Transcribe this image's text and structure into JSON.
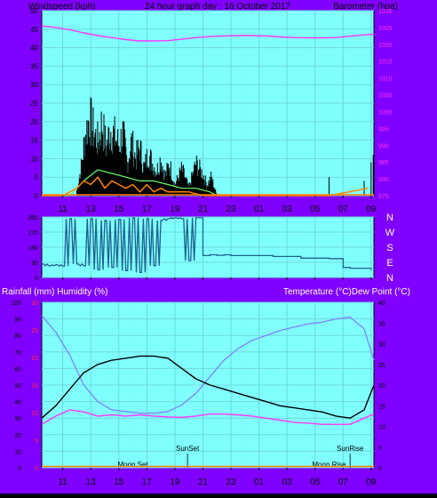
{
  "colors": {
    "page_bg": "#8000ff",
    "plot_bg": "#80ffff",
    "grid": "#6fd8d8",
    "wind_gust": "#000000",
    "wind_avg": "#66ff66",
    "wind_speed": "#ff8000",
    "barometer": "#ff33ff",
    "direction": "#1f5f8f",
    "temperature": "#000000",
    "humidity": "#8080ff",
    "dew_point": "#ff33ff",
    "rainfall": "#ff0000",
    "rain_axis": "#ff3333"
  },
  "header": {
    "left_label": "Windspeed (kph)",
    "center_label": "24 hour graph day : 16 October 2017",
    "right_label": "Barometer (hpa)"
  },
  "mid_header": {
    "left_label": "Rainfall (mm)  Humidity (%)",
    "right_label": "Temperature (°C)Dew Point (°C)"
  },
  "direction_labels": [
    "N",
    "W",
    "S",
    "E",
    "N"
  ],
  "time_ticks": [
    "11",
    "13",
    "15",
    "17",
    "19",
    "21",
    "23",
    "01",
    "03",
    "05",
    "07",
    "09"
  ],
  "chart_data": [
    {
      "type": "line",
      "name": "wind-and-barometer",
      "yaxis_left": {
        "label": "Windspeed (kph)",
        "ticks": [
          0,
          5,
          10,
          15,
          20,
          25,
          30,
          35,
          40,
          45,
          50
        ],
        "ylim": [
          0,
          50
        ]
      },
      "yaxis_right": {
        "label": "Barometer (hpa)",
        "ticks": [
          975,
          980,
          985,
          990,
          995,
          1000,
          1005,
          1010,
          1015,
          1020,
          1025,
          1030
        ],
        "ylim": [
          975,
          1030
        ]
      },
      "x_ticks": [
        "11",
        "13",
        "15",
        "17",
        "19",
        "21",
        "23",
        "01",
        "03",
        "05",
        "07",
        "09"
      ],
      "grid": true,
      "series": [
        {
          "axis": "right",
          "x": [
            9.5,
            10.5,
            11.5,
            12.5,
            13.5,
            14.5,
            15.5,
            16.5,
            17.5,
            18.5,
            19.5,
            20.5,
            21.5,
            22.5,
            23.5,
            24.5,
            25.5,
            26.5,
            27.5,
            28.5,
            29.5,
            30.5,
            31.5,
            32.5,
            33.2
          ],
          "values": [
            1025.5,
            1025,
            1024.3,
            1023.4,
            1022.6,
            1022,
            1021.4,
            1021,
            1021,
            1021.1,
            1021.5,
            1022,
            1022.3,
            1022.5,
            1022.6,
            1022.6,
            1022.5,
            1022.2,
            1022,
            1021.9,
            1021.9,
            1022,
            1022.4,
            1022.8,
            1023
          ]
        },
        {
          "axis": "left",
          "x": [
            9.5,
            10.5,
            11.5,
            12.0,
            12.3,
            12.6,
            12.9,
            13.2,
            13.5,
            13.8,
            14.1,
            14.4,
            14.7,
            15.0,
            15.3,
            15.6,
            15.9,
            16.2,
            16.5,
            16.8,
            17.1,
            17.4,
            17.7,
            18.0,
            18.3,
            18.6,
            19.0,
            19.5,
            20.0,
            20.5,
            21.0,
            21.3,
            21.6,
            22.0,
            30.0,
            32.5,
            33.0,
            33.2
          ],
          "values": [
            0,
            0,
            0,
            2,
            10,
            22,
            29,
            24,
            20,
            27,
            18,
            25,
            22,
            19,
            23,
            12,
            20,
            14,
            18,
            10,
            16,
            12,
            9,
            14,
            7,
            12,
            4,
            10,
            3,
            12,
            8,
            4,
            7,
            0,
            5,
            4,
            9,
            11
          ]
        },
        {
          "axis": "left",
          "x": [
            9.5,
            11.5,
            12.5,
            13.5,
            14.5,
            15.5,
            16.5,
            17.5,
            18.5,
            19.5,
            20.5,
            21.5,
            22.0
          ],
          "values": [
            0,
            0,
            4,
            7,
            6,
            5,
            4,
            4,
            3,
            2,
            2,
            1,
            0
          ]
        },
        {
          "axis": "left",
          "x": [
            9.5,
            11.0,
            12.0,
            12.5,
            13.0,
            13.5,
            14.0,
            14.5,
            15.0,
            15.5,
            16.0,
            16.5,
            17.0,
            17.5,
            18.0,
            18.5,
            19.0,
            20.0,
            21.0,
            30.0,
            32.8
          ],
          "values": [
            0,
            0,
            2,
            4,
            3,
            5,
            2,
            4,
            3,
            2,
            3,
            1,
            3,
            1,
            2,
            1,
            1,
            1,
            0,
            0,
            2
          ]
        }
      ]
    },
    {
      "type": "line",
      "name": "wind-direction",
      "yaxis_left": {
        "ticks": [
          0,
          90,
          180,
          270,
          360
        ],
        "ylim": [
          0,
          360
        ]
      },
      "grid": true,
      "series": [
        {
          "x": [
            9.5,
            10.0,
            10.5,
            11.0,
            11.5,
            12.0,
            12.5,
            13.0,
            13.5,
            14.0,
            14.5,
            15.0,
            15.5,
            16.0,
            16.5,
            17.0,
            17.5,
            18.0,
            18.5,
            19.0,
            19.5,
            20.0,
            20.5,
            21.0,
            21.5,
            22.0,
            22.5,
            23.0,
            24.0,
            26.0,
            28.0,
            29.0,
            30.0,
            31.0,
            31.5,
            32.0,
            33.0
          ],
          "values": [
            80,
            70,
            75,
            68,
            350,
            80,
            70,
            350,
            45,
            340,
            60,
            345,
            40,
            355,
            30,
            350,
            70,
            340,
            350,
            355,
            350,
            100,
            355,
            130,
            135,
            132,
            135,
            130,
            130,
            125,
            115,
            115,
            112,
            60,
            55,
            55,
            45
          ]
        }
      ]
    },
    {
      "type": "line",
      "name": "temperature-humidity",
      "yaxis_left": {
        "label": "Rainfall (mm)  Humidity (%)",
        "ticks": [
          0,
          10,
          20,
          30,
          40,
          50,
          60,
          70,
          80,
          90,
          100
        ],
        "ylim": [
          0,
          100
        ]
      },
      "yaxis_left_rain": {
        "ticks": [
          0,
          5,
          10,
          15,
          20,
          25,
          30
        ],
        "ylim": [
          0,
          30
        ]
      },
      "yaxis_right": {
        "label": "Temperature (°C)Dew Point (°C)",
        "ticks": [
          0,
          5,
          10,
          15,
          20,
          25,
          30,
          35,
          40
        ],
        "ylim": [
          0,
          40
        ]
      },
      "x_ticks": [
        "11",
        "13",
        "15",
        "17",
        "19",
        "21",
        "23",
        "01",
        "03",
        "05",
        "07",
        "09"
      ],
      "annotations": [
        {
          "text": "SunSet",
          "x": 19.9,
          "row": "upper"
        },
        {
          "text": "SunRise",
          "x": 31.5,
          "row": "upper"
        },
        {
          "text": "Moon Set",
          "x": 16.0,
          "row": "lower"
        },
        {
          "text": "Moon Rise",
          "x": 30.0,
          "row": "lower"
        }
      ],
      "grid": true,
      "series": [
        {
          "axis": "right",
          "x": [
            9.5,
            10.5,
            11.5,
            12.5,
            13.5,
            14.5,
            15.5,
            16.5,
            17.5,
            18.5,
            19.5,
            20.5,
            21.5,
            22.5,
            23.5,
            24.5,
            25.5,
            26.5,
            27.5,
            28.5,
            29.5,
            30.5,
            31.5,
            32.5,
            33.2
          ],
          "values": [
            12,
            15,
            19,
            23,
            25,
            26,
            26.5,
            27,
            27,
            26.5,
            24,
            21.5,
            20,
            19,
            18,
            17,
            16,
            15,
            14.5,
            14,
            13.5,
            12.5,
            12,
            14,
            20
          ]
        },
        {
          "axis": "left",
          "x": [
            9.5,
            10.5,
            11.5,
            12.5,
            13.5,
            14.5,
            15.5,
            16.5,
            17.5,
            18.5,
            19.5,
            20.5,
            21.5,
            22.5,
            23.5,
            24.5,
            25.5,
            26.5,
            27.5,
            28.5,
            29.5,
            30.5,
            31.5,
            32.5,
            33.2
          ],
          "values": [
            92,
            82,
            68,
            50,
            40,
            35,
            34,
            33,
            33,
            34,
            38,
            45,
            55,
            65,
            72,
            77,
            80,
            83,
            85,
            87,
            88,
            90,
            91,
            84,
            65
          ]
        },
        {
          "axis": "right",
          "x": [
            9.5,
            10.5,
            11.5,
            12.5,
            13.5,
            14.5,
            15.5,
            16.5,
            17.5,
            18.5,
            19.5,
            20.5,
            21.5,
            22.5,
            23.5,
            24.5,
            25.5,
            26.5,
            27.5,
            28.5,
            29.5,
            30.5,
            31.5,
            32.5,
            33.2
          ],
          "values": [
            10.5,
            12.5,
            14,
            13.5,
            12.5,
            12.8,
            12.5,
            12.8,
            12.5,
            12.3,
            12.2,
            12.5,
            13,
            13,
            12.8,
            12.5,
            12,
            11.5,
            11,
            10.8,
            10.5,
            10.5,
            10.5,
            12,
            13
          ]
        },
        {
          "axis": "left",
          "x": [
            9.5,
            33.2
          ],
          "values": [
            0,
            0
          ]
        }
      ]
    }
  ]
}
